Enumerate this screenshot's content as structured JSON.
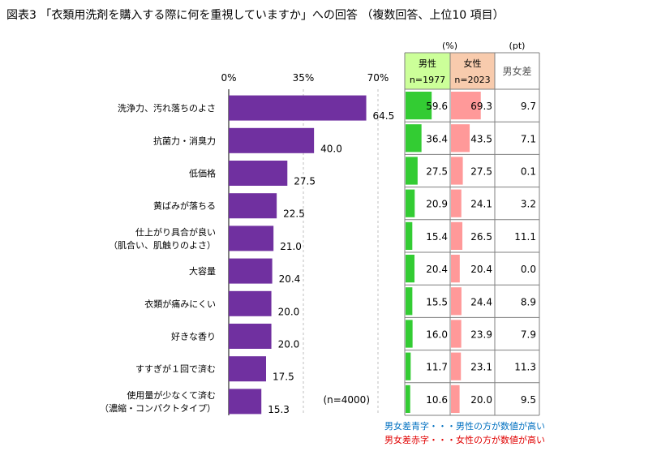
{
  "title": "図表3 「衣類用洗剤を購入する際に何を重視していますか」への回答 （複数回答、上位10 項目）",
  "chart_data": {
    "type": "bar",
    "orientation": "horizontal",
    "xlim": [
      0,
      70
    ],
    "ticks": [
      "0%",
      "35%",
      "70%"
    ],
    "sample": "(n=4000)",
    "bar_color": "#7030a0",
    "categories": [
      [
        "洗浄力、汚れ落ちのよさ"
      ],
      [
        "抗菌力・消臭力"
      ],
      [
        "低価格"
      ],
      [
        "黄ばみが落ちる"
      ],
      [
        "仕上がり具合が良い",
        "（肌合い、肌触りのよさ）"
      ],
      [
        "大容量"
      ],
      [
        "衣類が痛みにくい"
      ],
      [
        "好きな香り"
      ],
      [
        "すすぎが１回で済む"
      ],
      [
        "使用量が少なくて済む",
        "（濃縮・コンパクトタイプ）"
      ]
    ],
    "values": [
      64.5,
      40.0,
      27.5,
      22.5,
      21.0,
      20.4,
      20.0,
      20.0,
      17.5,
      15.3
    ],
    "value_labels": [
      "64.5",
      "40.0",
      "27.5",
      "22.5",
      "21.0",
      "20.4",
      "20.0",
      "20.0",
      "17.5",
      "15.3"
    ]
  },
  "table": {
    "unit_pct": "(%)",
    "unit_pt": "(pt)",
    "male_header": "男性",
    "male_n": "n=1977",
    "female_header": "女性",
    "female_n": "n=2023",
    "diff_header": "男女差",
    "male_color": "#33cc33",
    "female_color": "#ff9999",
    "male_header_bg": "#ccff99",
    "female_header_bg": "#f8cbad",
    "diff_color": "#e00000",
    "male": [
      59.6,
      36.4,
      27.5,
      20.9,
      15.4,
      20.4,
      15.5,
      16.0,
      11.7,
      10.6
    ],
    "male_labels": [
      "59.6",
      "36.4",
      "27.5",
      "20.9",
      "15.4",
      "20.4",
      "15.5",
      "16.0",
      "11.7",
      "10.6"
    ],
    "female": [
      69.3,
      43.5,
      27.5,
      24.1,
      26.5,
      20.4,
      24.4,
      23.9,
      23.1,
      20.0
    ],
    "female_labels": [
      "69.3",
      "43.5",
      "27.5",
      "24.1",
      "26.5",
      "20.4",
      "24.4",
      "23.9",
      "23.1",
      "20.0"
    ],
    "diff": [
      "9.7",
      "7.1",
      "0.1",
      "3.2",
      "11.1",
      "0.0",
      "8.9",
      "7.9",
      "11.3",
      "9.5"
    ]
  },
  "notes": {
    "blue": "男女差青字・・・男性の方が数値が高い",
    "red": "男女差赤字・・・女性の方が数値が高い"
  }
}
